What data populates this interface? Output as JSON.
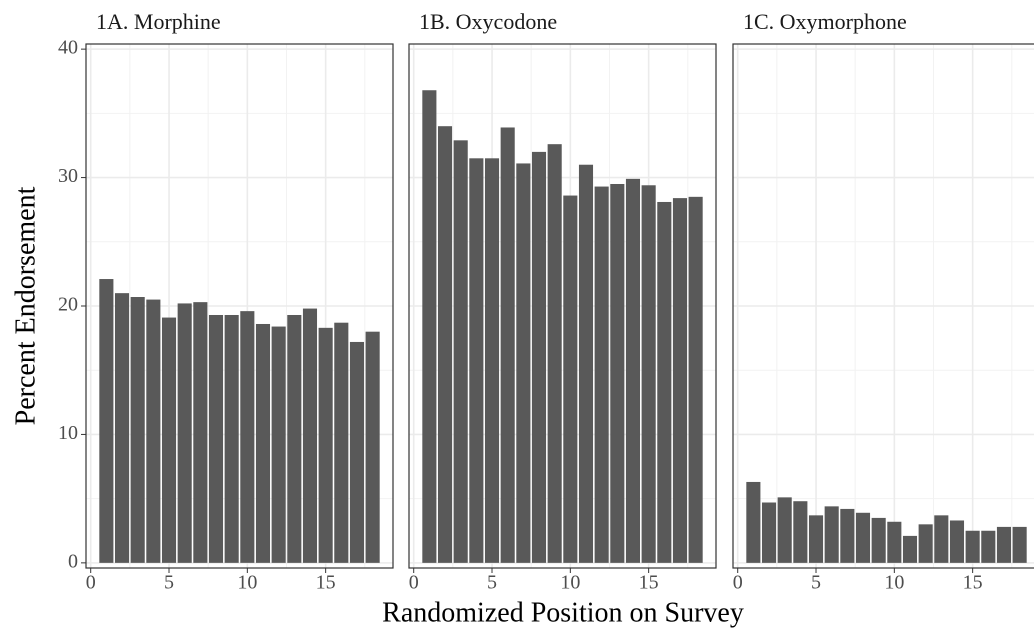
{
  "ylabel": "Percent Endorsement",
  "xlabel": "Randomized Position on Survey",
  "chart_data": [
    {
      "type": "bar",
      "title": "1A. Morphine",
      "color": "#595959",
      "grid": true,
      "x": [
        1,
        2,
        3,
        4,
        5,
        6,
        7,
        8,
        9,
        10,
        11,
        12,
        13,
        14,
        15,
        16,
        17,
        18
      ],
      "values": [
        22.1,
        21.0,
        20.7,
        20.5,
        19.1,
        20.2,
        20.3,
        19.3,
        19.3,
        19.6,
        18.6,
        18.4,
        19.3,
        19.8,
        18.3,
        18.7,
        17.2,
        18.0
      ],
      "xlim": [
        -0.3,
        19.3
      ],
      "xticks": [
        0,
        5,
        10,
        15
      ],
      "ylim": [
        -0.4,
        40.4
      ],
      "yticks": [
        0,
        10,
        20,
        30,
        40
      ]
    },
    {
      "type": "bar",
      "title": "1B. Oxycodone",
      "color": "#595959",
      "grid": true,
      "x": [
        1,
        2,
        3,
        4,
        5,
        6,
        7,
        8,
        9,
        10,
        11,
        12,
        13,
        14,
        15,
        16,
        17,
        18
      ],
      "values": [
        36.8,
        34.0,
        32.9,
        31.5,
        31.5,
        33.9,
        31.1,
        32.0,
        32.6,
        28.6,
        31.0,
        29.3,
        29.5,
        29.9,
        29.4,
        28.1,
        28.4,
        28.5
      ],
      "xlim": [
        -0.3,
        19.3
      ],
      "xticks": [
        0,
        5,
        10,
        15
      ],
      "ylim": [
        -0.4,
        40.4
      ],
      "yticks": [
        0,
        10,
        20,
        30,
        40
      ]
    },
    {
      "type": "bar",
      "title": "1C. Oxymorphone",
      "color": "#595959",
      "grid": true,
      "x": [
        1,
        2,
        3,
        4,
        5,
        6,
        7,
        8,
        9,
        10,
        11,
        12,
        13,
        14,
        15,
        16,
        17,
        18
      ],
      "values": [
        6.3,
        4.7,
        5.1,
        4.8,
        3.7,
        4.4,
        4.2,
        3.9,
        3.5,
        3.2,
        2.1,
        3.0,
        3.7,
        3.3,
        2.5,
        2.5,
        2.8,
        2.8
      ],
      "xlim": [
        -0.3,
        19.3
      ],
      "xticks": [
        0,
        5,
        10,
        15
      ],
      "ylim": [
        -0.4,
        40.4
      ],
      "yticks": [
        0,
        10,
        20,
        30,
        40
      ]
    }
  ]
}
